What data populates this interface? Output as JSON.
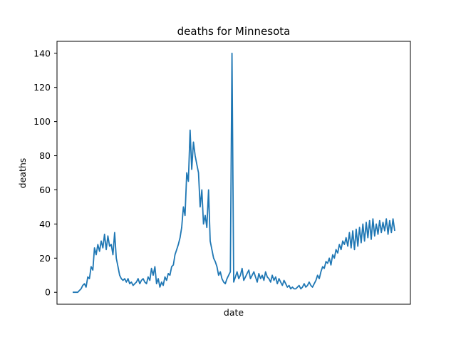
{
  "chart_data": {
    "type": "line",
    "title": "deaths for Minnesota",
    "xlabel": "date",
    "ylabel": "deaths",
    "ylim": [
      -7,
      147
    ],
    "yticks": [
      0,
      20,
      40,
      60,
      80,
      100,
      120,
      140
    ],
    "x_ticks_shown": false,
    "grid": false,
    "series": [
      {
        "color": "#1f77b4",
        "x": [
          0,
          5,
          10,
          15,
          20,
          25,
          30,
          35,
          40,
          45,
          50,
          55,
          60,
          65,
          70,
          75,
          80,
          85,
          90,
          95,
          100,
          105,
          110,
          115,
          120,
          125,
          130,
          135,
          140,
          145,
          150,
          155,
          160,
          165,
          170,
          175,
          180,
          185,
          190,
          195,
          200,
          205,
          210,
          215,
          220,
          225,
          230,
          235,
          240,
          245,
          250,
          255,
          260,
          265,
          270,
          275,
          280,
          285,
          290,
          295,
          300,
          305,
          310,
          315,
          320,
          325,
          330,
          335,
          340,
          345,
          350,
          355,
          360,
          365,
          370,
          375,
          380,
          385,
          390,
          395,
          400,
          405,
          410,
          415,
          420,
          425,
          430,
          435,
          440,
          445,
          450,
          455,
          460,
          465,
          470,
          475,
          480,
          485,
          490,
          495,
          500,
          505,
          510,
          515,
          520,
          525,
          530,
          535,
          540,
          545,
          550,
          555,
          560,
          565,
          570,
          575,
          580,
          585,
          590,
          595,
          600,
          605,
          610,
          615,
          620,
          625,
          630,
          635,
          640,
          645,
          650,
          655,
          660,
          665,
          670,
          675,
          680,
          685,
          690,
          695,
          700,
          705,
          710,
          715,
          720,
          725,
          730,
          735,
          740,
          745,
          750,
          755,
          760,
          765,
          770,
          775,
          780,
          785,
          790,
          795,
          800,
          805,
          810,
          815,
          820,
          825,
          830,
          835,
          840,
          845,
          850,
          855,
          860,
          865,
          870,
          875,
          880,
          885,
          890,
          895,
          900,
          905,
          910,
          915,
          920,
          925,
          930,
          935,
          940,
          945,
          950,
          955,
          960
        ],
        "y": [
          0,
          0,
          0,
          0,
          1,
          2,
          4,
          5,
          3,
          9,
          8,
          15,
          13,
          26,
          22,
          28,
          24,
          30,
          26,
          34,
          25,
          33,
          27,
          28,
          22,
          35,
          20,
          15,
          10,
          8,
          7,
          8,
          6,
          8,
          5,
          6,
          4,
          5,
          6,
          8,
          5,
          7,
          8,
          6,
          5,
          9,
          7,
          14,
          10,
          15,
          5,
          8,
          3,
          6,
          4,
          9,
          7,
          11,
          10,
          15,
          16,
          22,
          25,
          28,
          32,
          38,
          50,
          45,
          70,
          65,
          95,
          72,
          88,
          80,
          75,
          70,
          50,
          60,
          40,
          45,
          38,
          60,
          30,
          25,
          20,
          18,
          15,
          10,
          12,
          8,
          6,
          5,
          8,
          10,
          12,
          140,
          6,
          9,
          12,
          8,
          10,
          14,
          7,
          9,
          11,
          13,
          8,
          10,
          12,
          9,
          6,
          11,
          8,
          10,
          7,
          12,
          9,
          8,
          6,
          10,
          7,
          9,
          5,
          8,
          6,
          4,
          7,
          5,
          3,
          4,
          2,
          3,
          2,
          2,
          3,
          4,
          2,
          3,
          5,
          3,
          4,
          6,
          4,
          3,
          5,
          7,
          10,
          8,
          12,
          15,
          14,
          18,
          17,
          20,
          16,
          22,
          20,
          25,
          23,
          28,
          25,
          30,
          28,
          32,
          27,
          35,
          26,
          36,
          25,
          37,
          27,
          38,
          29,
          40,
          30,
          41,
          32,
          42,
          31,
          43,
          33,
          40,
          34,
          42,
          35,
          41,
          36,
          43,
          34,
          42,
          35,
          43,
          36
        ]
      }
    ]
  }
}
